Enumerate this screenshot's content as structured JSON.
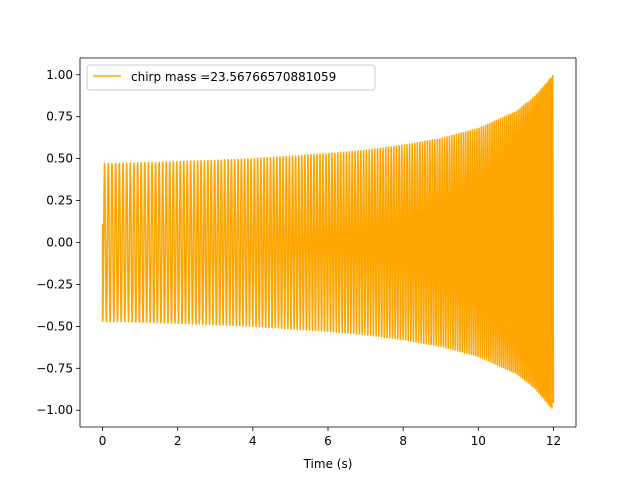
{
  "chart_data": {
    "type": "line",
    "xlabel": "Time (s)",
    "ylabel": "",
    "xlim": [
      -0.6,
      12.6
    ],
    "ylim": [
      -1.1,
      1.1
    ],
    "x_ticks": [
      0,
      2,
      4,
      6,
      8,
      10,
      12
    ],
    "x_tick_labels": [
      "0",
      "2",
      "4",
      "6",
      "8",
      "10",
      "12"
    ],
    "y_ticks": [
      1.0,
      0.75,
      0.5,
      0.25,
      0.0,
      -0.25,
      -0.5,
      -0.75,
      -1.0
    ],
    "y_tick_labels": [
      "1.00",
      "0.75",
      "0.50",
      "0.25",
      "0.00",
      "−0.25",
      "−0.50",
      "−0.75",
      "−1.00"
    ],
    "grid": false,
    "legend": {
      "placement": "top-left"
    },
    "series": [
      {
        "name": "chirp mass =23.56766570881059",
        "color": "#ffa500",
        "waveform": "chirp",
        "t_start": 0,
        "t_end": 12,
        "initial_value": 0.11,
        "envelope": [
          [
            0.0,
            0.47
          ],
          [
            1.0,
            0.475
          ],
          [
            2.0,
            0.482
          ],
          [
            3.0,
            0.49
          ],
          [
            4.0,
            0.5
          ],
          [
            5.0,
            0.515
          ],
          [
            6.0,
            0.53
          ],
          [
            7.0,
            0.55
          ],
          [
            8.0,
            0.58
          ],
          [
            9.0,
            0.62
          ],
          [
            10.0,
            0.68
          ],
          [
            11.0,
            0.78
          ],
          [
            11.5,
            0.87
          ],
          [
            12.0,
            1.0
          ]
        ],
        "oscillation_count": 165
      }
    ]
  }
}
